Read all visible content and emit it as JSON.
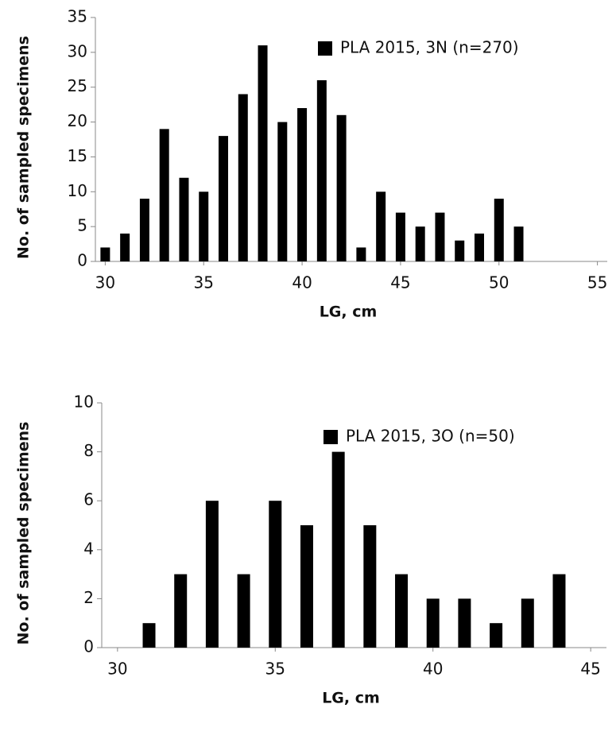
{
  "chart_data": [
    {
      "type": "bar",
      "x": [
        30,
        31,
        32,
        33,
        34,
        35,
        36,
        37,
        38,
        39,
        40,
        41,
        42,
        43,
        44,
        45,
        46,
        47,
        48,
        49,
        50,
        51
      ],
      "series": [
        {
          "name": "PLA 2015, 3N (n=270)",
          "color": "#000000",
          "values": [
            2,
            4,
            9,
            19,
            12,
            10,
            18,
            24,
            31,
            20,
            22,
            26,
            21,
            2,
            10,
            7,
            5,
            7,
            3,
            4,
            9,
            5
          ]
        }
      ],
      "xlim": [
        29.5,
        55.5
      ],
      "xticks": [
        30,
        35,
        40,
        45,
        50,
        55
      ],
      "ylim": [
        0,
        35
      ],
      "yticks": [
        0,
        5,
        10,
        15,
        20,
        25,
        30,
        35
      ],
      "x_label": "LG, cm",
      "y_label": "No. of sampled specimens",
      "legend": "upper right"
    },
    {
      "type": "bar",
      "x": [
        31,
        32,
        33,
        34,
        35,
        36,
        37,
        38,
        39,
        40,
        41,
        42,
        43,
        44
      ],
      "series": [
        {
          "name": "PLA 2015, 3O (n=50)",
          "color": "#000000",
          "values": [
            1,
            3,
            6,
            3,
            6,
            5,
            8,
            5,
            3,
            2,
            2,
            1,
            2,
            3
          ]
        }
      ],
      "xlim": [
        29.5,
        45.5
      ],
      "xticks": [
        30,
        35,
        40,
        45
      ],
      "ylim": [
        0,
        10
      ],
      "yticks": [
        0,
        2,
        4,
        6,
        8,
        10
      ],
      "x_label": "LG, cm",
      "y_label": "No. of sampled specimens",
      "legend": "upper right"
    }
  ]
}
